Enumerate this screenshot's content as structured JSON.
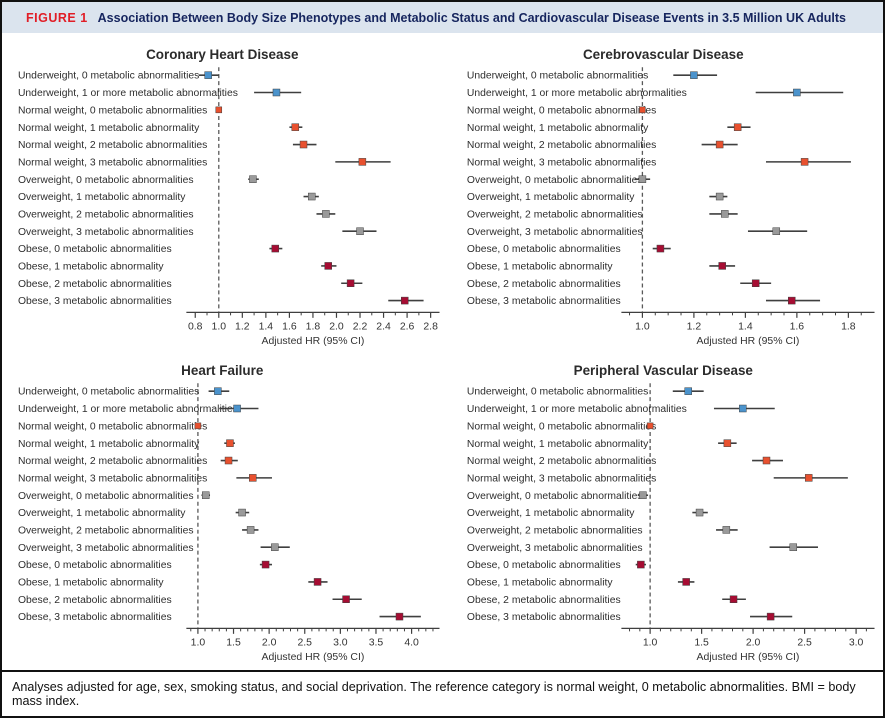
{
  "header": {
    "label": "FIGURE 1",
    "title": "Association Between Body Size Phenotypes and Metabolic Status and Cardiovascular Disease Events in 3.5 Million UK Adults"
  },
  "footnote": "Analyses adjusted for age, sex, smoking status, and social deprivation. The reference category is normal weight, 0 metabolic abnormalities. BMI = body mass index.",
  "colors": {
    "underweight": "#4b93cc",
    "normal": "#e8512f",
    "overweight": "#9a9a9a",
    "obese": "#a60d33",
    "ci_line": "#3f3f3f",
    "axis": "#3f3f3f",
    "reference_line": "#595959",
    "header_bg": "#dbe4ee",
    "figure_label": "#e11d26",
    "header_title": "#16255e",
    "text": "#2e2e2e"
  },
  "row_labels": [
    "Underweight, 0 metabolic abnormalities",
    "Underweight, 1 or more metabolic abnormalities",
    "Normal weight, 0 metabolic abnormalities",
    "Normal weight, 1 metabolic abnormality",
    "Normal weight, 2 metabolic abnormalities",
    "Normal weight, 3 metabolic abnormalities",
    "Overweight, 0 metabolic abnormalities",
    "Overweight, 1 metabolic abnormality",
    "Overweight, 2 metabolic abnormalities",
    "Overweight, 3 metabolic abnormalities",
    "Obese, 0 metabolic abnormalities",
    "Obese, 1 metabolic abnormality",
    "Obese, 2 metabolic abnormalities",
    "Obese, 3 metabolic abnormalities"
  ],
  "row_groups": [
    "underweight",
    "underweight",
    "normal",
    "normal",
    "normal",
    "normal",
    "overweight",
    "overweight",
    "overweight",
    "overweight",
    "obese",
    "obese",
    "obese",
    "obese"
  ],
  "chart_data": [
    {
      "type": "forest",
      "title": "Coronary Heart Disease",
      "xlabel": "Adjusted HR (95% CI)",
      "xlim": [
        0.75,
        2.85
      ],
      "xticks": [
        0.8,
        1.0,
        1.2,
        1.4,
        1.6,
        1.8,
        2.0,
        2.2,
        2.4,
        2.6,
        2.8
      ],
      "minor_step": 0.1,
      "ref_line": 1.0,
      "points": [
        {
          "hr": 0.91,
          "lo": 0.83,
          "hi": 1.0
        },
        {
          "hr": 1.49,
          "lo": 1.3,
          "hi": 1.7
        },
        {
          "hr": 1.0,
          "lo": 1.0,
          "hi": 1.0,
          "ref": true
        },
        {
          "hr": 1.65,
          "lo": 1.6,
          "hi": 1.71
        },
        {
          "hr": 1.72,
          "lo": 1.63,
          "hi": 1.83
        },
        {
          "hr": 2.22,
          "lo": 1.99,
          "hi": 2.46
        },
        {
          "hr": 1.29,
          "lo": 1.25,
          "hi": 1.34
        },
        {
          "hr": 1.79,
          "lo": 1.72,
          "hi": 1.85
        },
        {
          "hr": 1.91,
          "lo": 1.83,
          "hi": 1.99
        },
        {
          "hr": 2.2,
          "lo": 2.05,
          "hi": 2.34
        },
        {
          "hr": 1.48,
          "lo": 1.43,
          "hi": 1.54
        },
        {
          "hr": 1.93,
          "lo": 1.87,
          "hi": 2.0
        },
        {
          "hr": 2.12,
          "lo": 2.04,
          "hi": 2.22
        },
        {
          "hr": 2.58,
          "lo": 2.44,
          "hi": 2.74
        }
      ]
    },
    {
      "type": "forest",
      "title": "Cerebrovascular Disease",
      "xlabel": "Adjusted HR (95% CI)",
      "xlim": [
        0.93,
        1.89
      ],
      "xticks": [
        1.0,
        1.2,
        1.4,
        1.6,
        1.8
      ],
      "minor_step": 0.05,
      "ref_line": 1.0,
      "points": [
        {
          "hr": 1.2,
          "lo": 1.12,
          "hi": 1.29
        },
        {
          "hr": 1.6,
          "lo": 1.44,
          "hi": 1.78
        },
        {
          "hr": 1.0,
          "lo": 1.0,
          "hi": 1.0,
          "ref": true
        },
        {
          "hr": 1.37,
          "lo": 1.33,
          "hi": 1.42
        },
        {
          "hr": 1.3,
          "lo": 1.23,
          "hi": 1.37
        },
        {
          "hr": 1.63,
          "lo": 1.48,
          "hi": 1.81
        },
        {
          "hr": 1.0,
          "lo": 0.97,
          "hi": 1.03
        },
        {
          "hr": 1.3,
          "lo": 1.26,
          "hi": 1.33
        },
        {
          "hr": 1.32,
          "lo": 1.26,
          "hi": 1.37
        },
        {
          "hr": 1.52,
          "lo": 1.41,
          "hi": 1.64
        },
        {
          "hr": 1.07,
          "lo": 1.04,
          "hi": 1.11
        },
        {
          "hr": 1.31,
          "lo": 1.26,
          "hi": 1.36
        },
        {
          "hr": 1.44,
          "lo": 1.38,
          "hi": 1.5
        },
        {
          "hr": 1.58,
          "lo": 1.48,
          "hi": 1.69
        }
      ]
    },
    {
      "type": "forest",
      "title": "Heart Failure",
      "xlabel": "Adjusted HR (95% CI)",
      "xlim": [
        0.88,
        4.35
      ],
      "xticks": [
        1.0,
        1.5,
        2.0,
        2.5,
        3.0,
        3.5,
        4.0
      ],
      "minor_step": 0.1,
      "ref_line": 1.0,
      "points": [
        {
          "hr": 1.28,
          "lo": 1.15,
          "hi": 1.44
        },
        {
          "hr": 1.55,
          "lo": 1.3,
          "hi": 1.85
        },
        {
          "hr": 1.0,
          "lo": 1.0,
          "hi": 1.0,
          "ref": true
        },
        {
          "hr": 1.45,
          "lo": 1.37,
          "hi": 1.52
        },
        {
          "hr": 1.43,
          "lo": 1.32,
          "hi": 1.56
        },
        {
          "hr": 1.77,
          "lo": 1.54,
          "hi": 2.04
        },
        {
          "hr": 1.11,
          "lo": 1.05,
          "hi": 1.17
        },
        {
          "hr": 1.62,
          "lo": 1.53,
          "hi": 1.72
        },
        {
          "hr": 1.74,
          "lo": 1.62,
          "hi": 1.85
        },
        {
          "hr": 2.08,
          "lo": 1.88,
          "hi": 2.29
        },
        {
          "hr": 1.95,
          "lo": 1.87,
          "hi": 2.04
        },
        {
          "hr": 2.68,
          "lo": 2.55,
          "hi": 2.82
        },
        {
          "hr": 3.08,
          "lo": 2.89,
          "hi": 3.3
        },
        {
          "hr": 3.83,
          "lo": 3.55,
          "hi": 4.13
        }
      ]
    },
    {
      "type": "forest",
      "title": "Peripheral Vascular Disease",
      "xlabel": "Adjusted HR (95% CI)",
      "xlim": [
        0.75,
        3.15
      ],
      "xticks": [
        1.0,
        1.5,
        2.0,
        2.5,
        3.0
      ],
      "minor_step": 0.1,
      "ref_line": 1.0,
      "points": [
        {
          "hr": 1.37,
          "lo": 1.22,
          "hi": 1.52
        },
        {
          "hr": 1.9,
          "lo": 1.62,
          "hi": 2.21
        },
        {
          "hr": 1.0,
          "lo": 1.0,
          "hi": 1.0,
          "ref": true
        },
        {
          "hr": 1.75,
          "lo": 1.66,
          "hi": 1.84
        },
        {
          "hr": 2.13,
          "lo": 1.99,
          "hi": 2.29
        },
        {
          "hr": 2.54,
          "lo": 2.2,
          "hi": 2.92
        },
        {
          "hr": 0.93,
          "lo": 0.88,
          "hi": 0.98
        },
        {
          "hr": 1.48,
          "lo": 1.41,
          "hi": 1.56
        },
        {
          "hr": 1.74,
          "lo": 1.64,
          "hi": 1.85
        },
        {
          "hr": 2.39,
          "lo": 2.16,
          "hi": 2.63
        },
        {
          "hr": 0.91,
          "lo": 0.86,
          "hi": 0.96
        },
        {
          "hr": 1.35,
          "lo": 1.27,
          "hi": 1.43
        },
        {
          "hr": 1.81,
          "lo": 1.7,
          "hi": 1.93
        },
        {
          "hr": 2.17,
          "lo": 1.97,
          "hi": 2.38
        }
      ]
    }
  ]
}
